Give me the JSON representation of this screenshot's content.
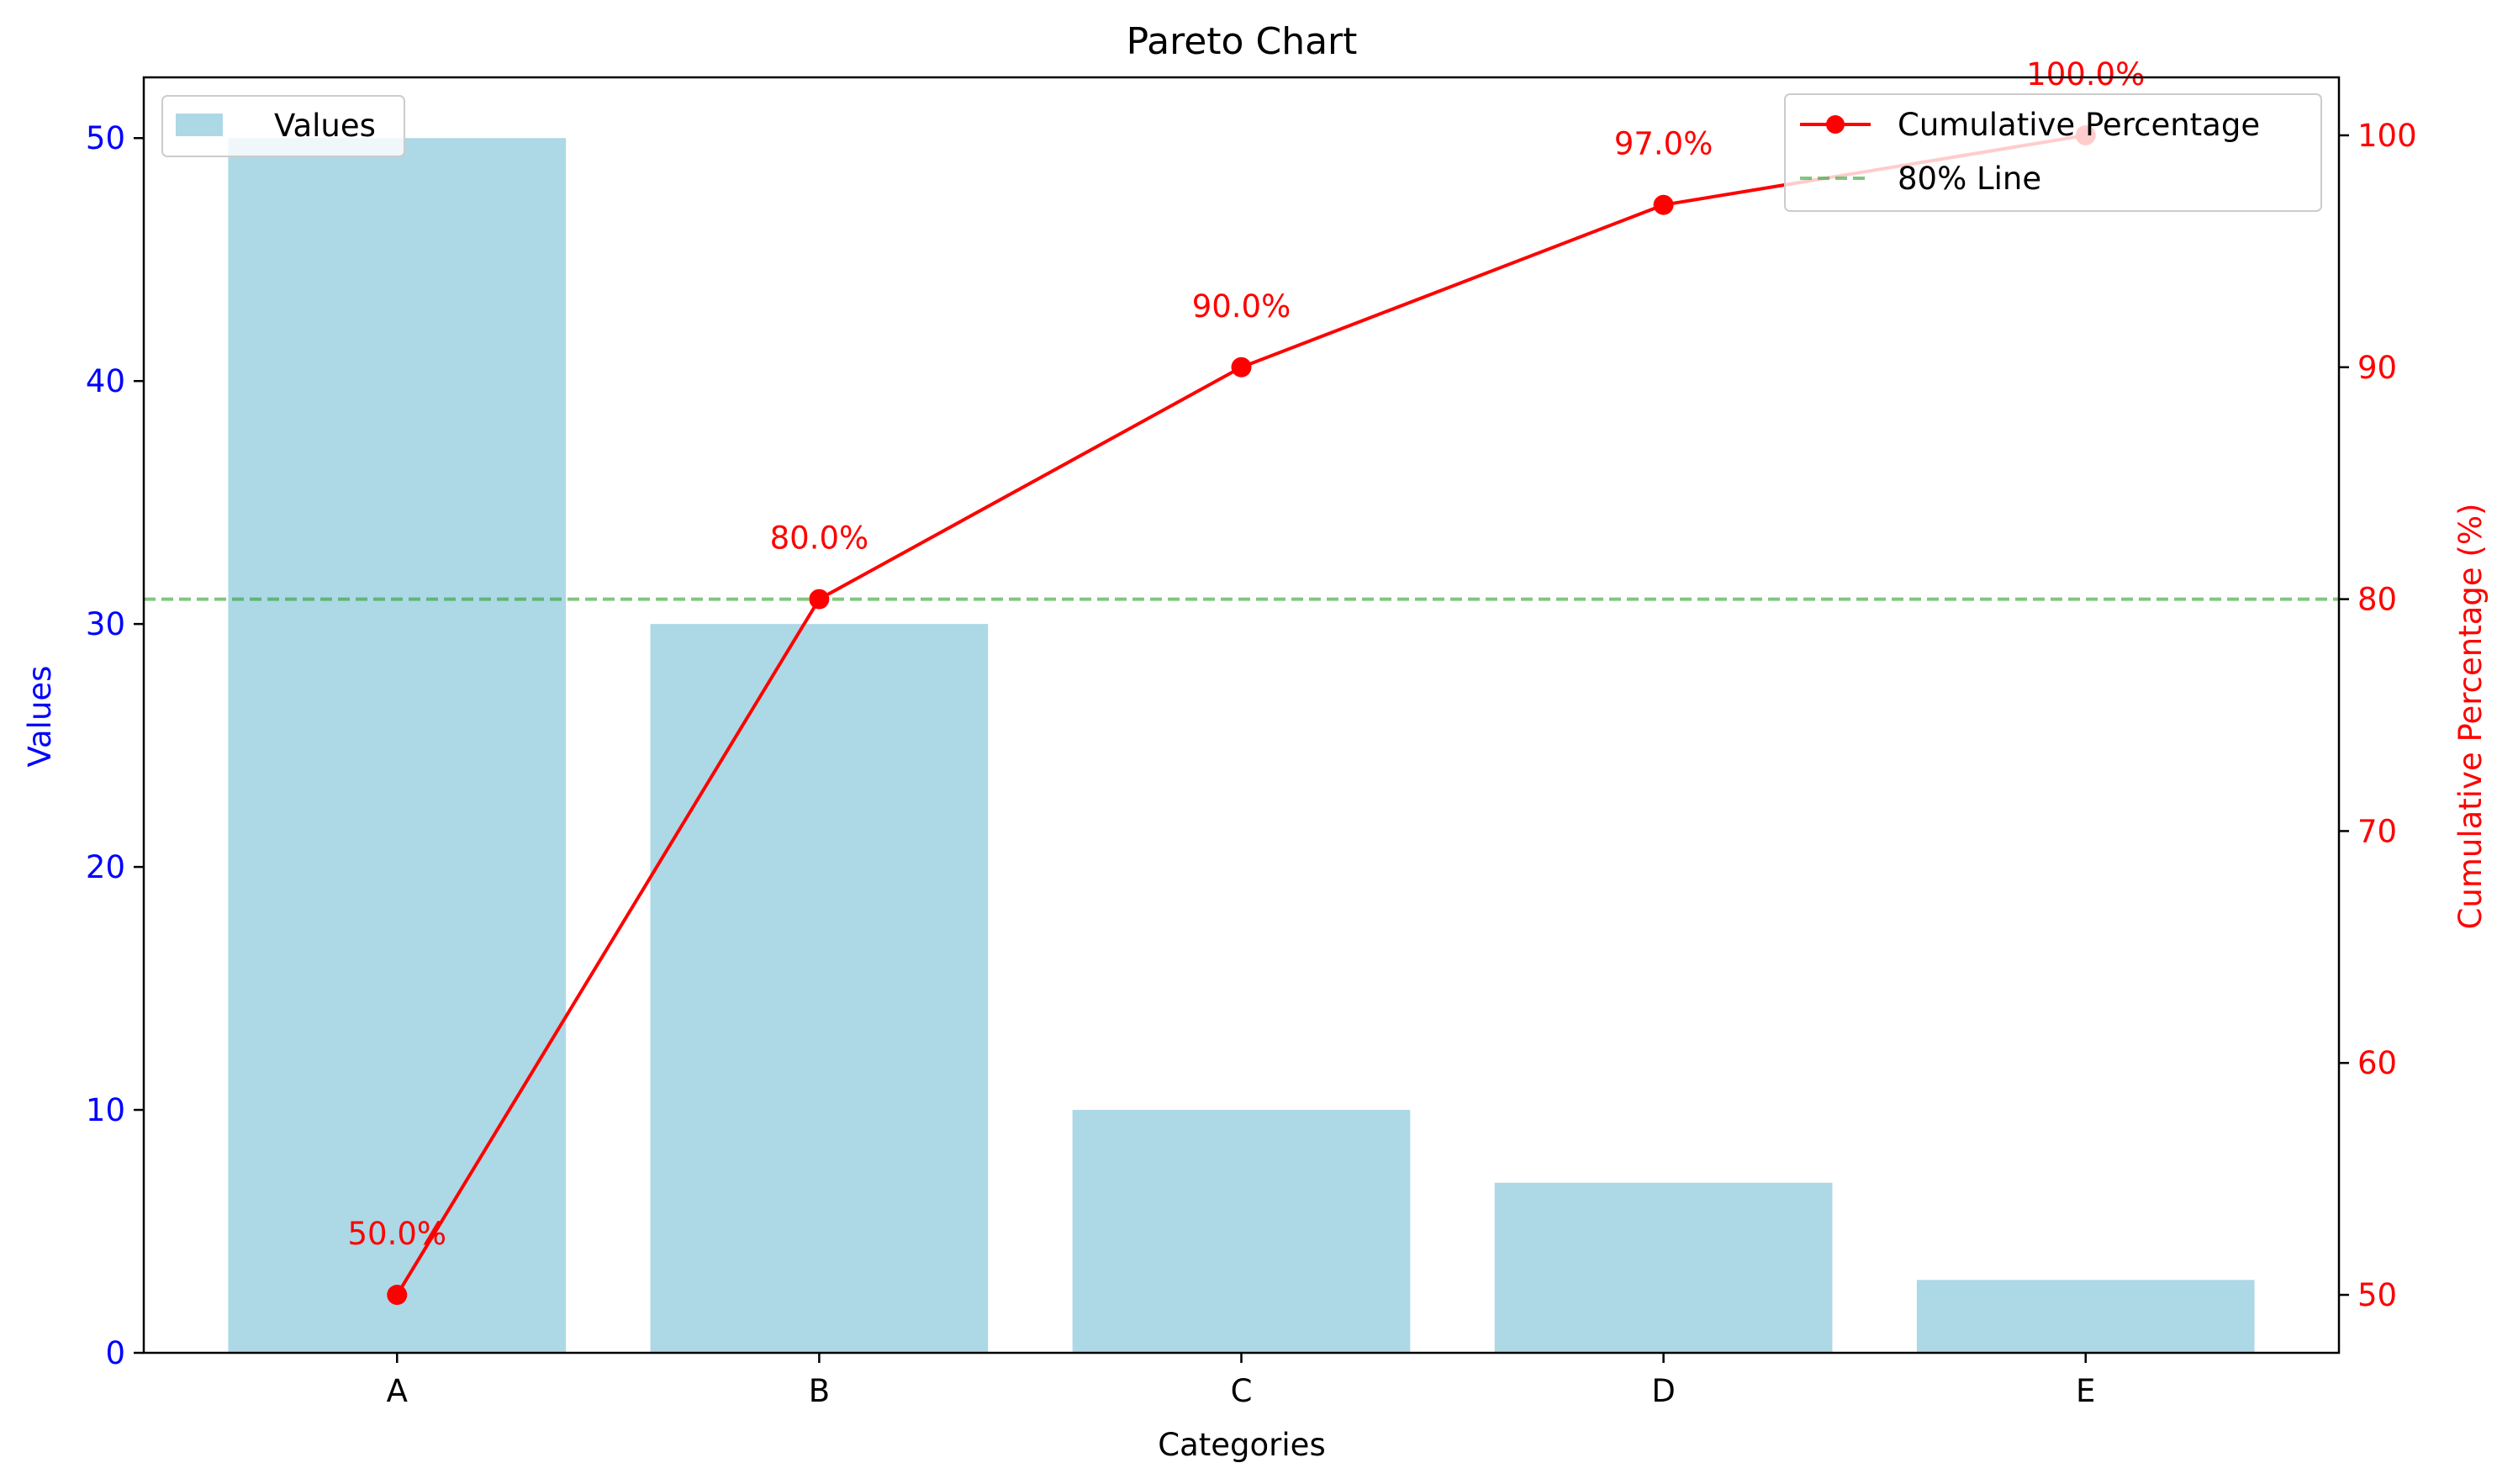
{
  "chart_data": {
    "type": "bar",
    "title": "Pareto Chart",
    "xlabel": "Categories",
    "ylabel": "Values",
    "y2label": "Cumulative Percentage (%)",
    "categories": [
      "A",
      "B",
      "C",
      "D",
      "E"
    ],
    "series": [
      {
        "name": "Values",
        "type": "bar",
        "axis": "left",
        "values": [
          50,
          30,
          10,
          7,
          3
        ],
        "color": "#add8e6"
      },
      {
        "name": "Cumulative Percentage",
        "type": "line",
        "axis": "right",
        "values": [
          50,
          80,
          90,
          97,
          100
        ],
        "color": "#ff0000"
      }
    ],
    "reference_line": {
      "name": "80% Line",
      "axis": "right",
      "value": 80,
      "color": "#2ca02c",
      "style": "dashed"
    },
    "point_labels": [
      "50.0%",
      "80.0%",
      "90.0%",
      "97.0%",
      "100.0%"
    ],
    "ylim": [
      0,
      52.5
    ],
    "y2lim": [
      47.5,
      102.5
    ],
    "yticks": [
      0,
      10,
      20,
      30,
      40,
      50
    ],
    "y2ticks": [
      50,
      60,
      70,
      80,
      90,
      100
    ],
    "left_axis_color": "#0000ff",
    "right_axis_color": "#ff0000",
    "legend_left_placement": "upper left",
    "legend_right_placement": "upper right",
    "grid": false
  }
}
